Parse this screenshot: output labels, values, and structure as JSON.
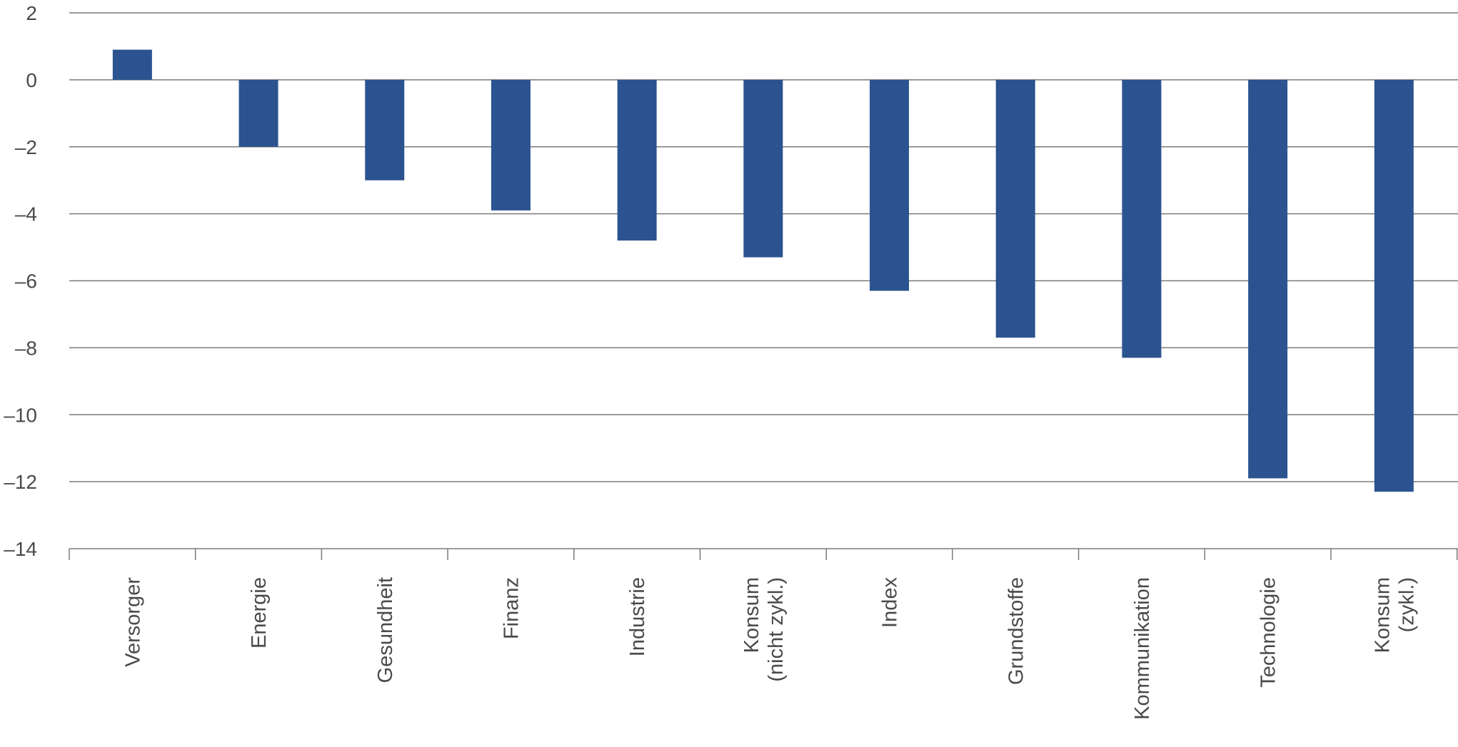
{
  "chart_data": {
    "type": "bar",
    "title": "",
    "xlabel": "",
    "ylabel": "",
    "categories": [
      [
        "Versorger"
      ],
      [
        "Energie"
      ],
      [
        "Gesundheit"
      ],
      [
        "Finanz"
      ],
      [
        "Industrie"
      ],
      [
        "Konsum",
        "(nicht zykl.)"
      ],
      [
        "Index"
      ],
      [
        "Grundstoffe"
      ],
      [
        "Kommunikation"
      ],
      [
        "Technologie"
      ],
      [
        "Konsum",
        "(zykl.)"
      ]
    ],
    "values": [
      0.9,
      -2.0,
      -3.0,
      -3.9,
      -4.8,
      -5.3,
      -6.3,
      -7.7,
      -8.3,
      -11.9,
      -12.3
    ],
    "ylim": [
      -14,
      2
    ],
    "yticks": [
      2,
      0,
      -2,
      -4,
      -6,
      -8,
      -10,
      -12,
      -14
    ],
    "ytick_labels": [
      "2",
      "0",
      "–2",
      "–4",
      "–6",
      "–8",
      "–10",
      "–12",
      "–14"
    ],
    "grid": true,
    "legend": "none",
    "bar_color": "#2b5390",
    "grid_color": "#7a7a7a"
  }
}
